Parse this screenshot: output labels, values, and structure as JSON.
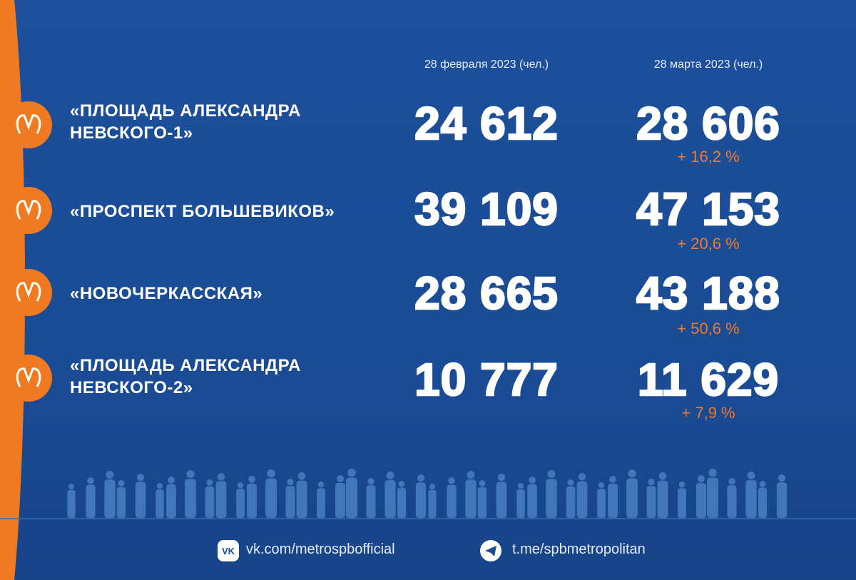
{
  "header": {
    "columns": [
      "28 февраля 2023 (чел.)",
      "28 марта 2023 (чел.)"
    ]
  },
  "table": {
    "rows": [
      {
        "station": [
          "«ПЛОЩАДЬ АЛЕКСАНДРА",
          "НЕВСКОГО-1»"
        ],
        "feb": "24 612",
        "mar": "28 606",
        "change": "+ 16,2 %"
      },
      {
        "station": [
          "«ПРОСПЕКТ БОЛЬШЕВИКОВ»"
        ],
        "feb": "39 109",
        "mar": "47 153",
        "change": "+ 20,6 %"
      },
      {
        "station": [
          "«НОВОЧЕРКАССКАЯ»"
        ],
        "feb": "28 665",
        "mar": "43 188",
        "change": "+ 50,6 %"
      },
      {
        "station": [
          "«ПЛОЩАДЬ АЛЕКСАНДРА",
          "НЕВСКОГО-2»"
        ],
        "feb": "10 777",
        "mar": "11 629",
        "change": "+ 7,9 %"
      }
    ]
  },
  "footer": {
    "links": [
      "vk.com/metrospbofficial",
      "t.me/spbmetropolitan"
    ]
  }
}
